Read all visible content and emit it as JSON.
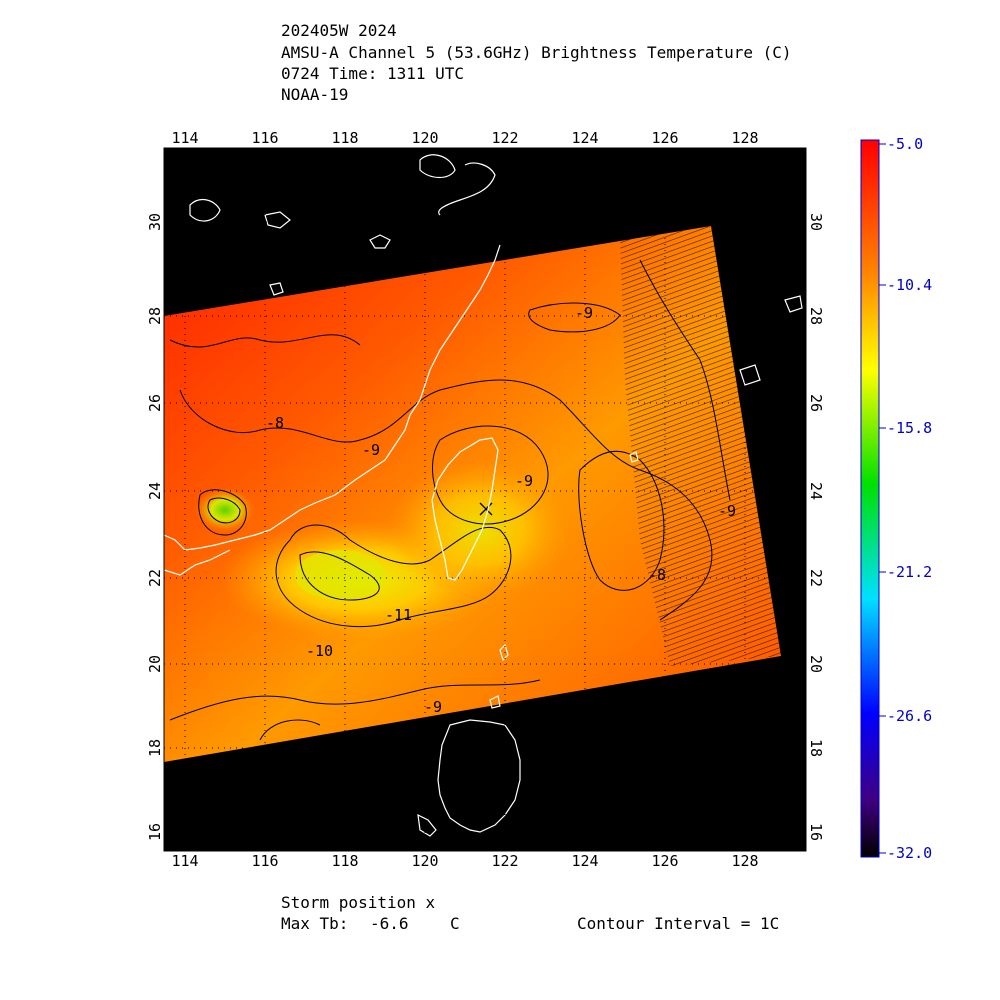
{
  "title": {
    "line1": "202405W 2024",
    "line2": "AMSU-A Channel 5 (53.6GHz) Brightness Temperature (C)",
    "line3": "0724 Time: 1311 UTC",
    "line4": "NOAA-19"
  },
  "axes": {
    "lon_ticks": [
      "114",
      "116",
      "118",
      "120",
      "122",
      "124",
      "126",
      "128"
    ],
    "lat_ticks": [
      "30",
      "28",
      "26",
      "24",
      "22",
      "20",
      "18",
      "16"
    ]
  },
  "contour_labels": [
    "-9",
    "-8",
    "-9",
    "-9",
    "-10",
    "-11",
    "-8",
    "-9",
    "-9"
  ],
  "colorbar": {
    "labels": [
      "-5.0",
      "-10.4",
      "-15.8",
      "-21.2",
      "-26.6",
      "-32.0"
    ],
    "min": -32.0,
    "max": -5.0
  },
  "footer": {
    "storm_position": "Storm position x",
    "max_tb_label": "Max Tb:",
    "max_tb_value": "-6.6",
    "max_tb_unit": "C",
    "contour_interval": "Contour Interval = 1C"
  },
  "colors": {
    "swath_hot": "#ff2a00",
    "swath_mid": "#ff8a00",
    "swath_warm": "#ffe000",
    "background": "#000000",
    "coastline": "#ffffff",
    "colorbar_labels": "#0000cc"
  }
}
